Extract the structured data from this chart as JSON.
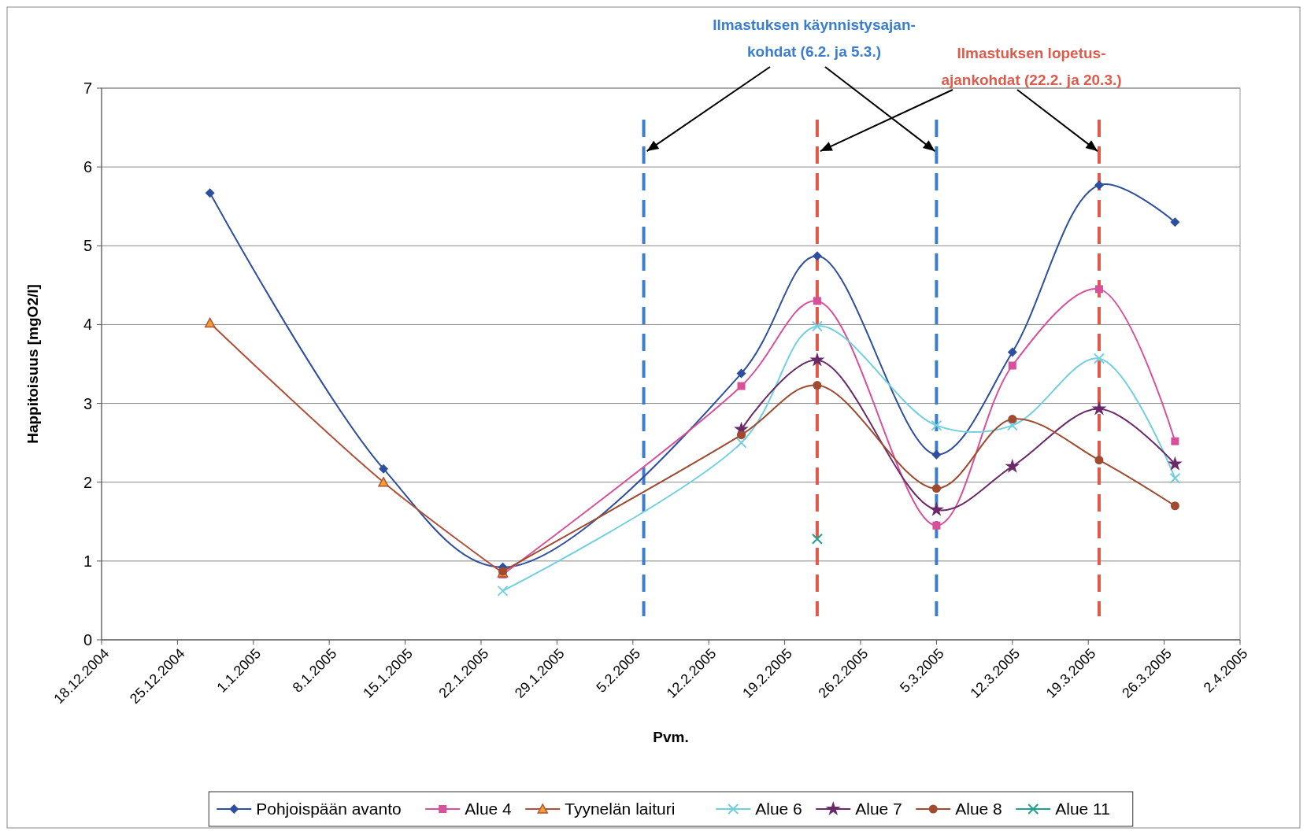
{
  "chart_data": {
    "type": "line",
    "xlabel": "Pvm.",
    "ylabel": "Happitoisuus [mgO2/l]",
    "xlim": [
      "2004-12-18",
      "2005-04-02"
    ],
    "xticks": [
      {
        "value": "2004-12-18",
        "label": "18.12.2004"
      },
      {
        "value": "2004-12-25",
        "label": "25.12.2004"
      },
      {
        "value": "2005-01-01",
        "label": "1.1.2005"
      },
      {
        "value": "2005-01-08",
        "label": "8.1.2005"
      },
      {
        "value": "2005-01-15",
        "label": "15.1.2005"
      },
      {
        "value": "2005-01-22",
        "label": "22.1.2005"
      },
      {
        "value": "2005-01-29",
        "label": "29.1.2005"
      },
      {
        "value": "2005-02-05",
        "label": "5.2.2005"
      },
      {
        "value": "2005-02-12",
        "label": "12.2.2005"
      },
      {
        "value": "2005-02-19",
        "label": "19.2.2005"
      },
      {
        "value": "2005-02-26",
        "label": "26.2.2005"
      },
      {
        "value": "2005-03-05",
        "label": "5.3.2005"
      },
      {
        "value": "2005-03-12",
        "label": "12.3.2005"
      },
      {
        "value": "2005-03-19",
        "label": "19.3.2005"
      },
      {
        "value": "2005-03-26",
        "label": "26.3.2005"
      },
      {
        "value": "2005-04-02",
        "label": "2.4.2005"
      }
    ],
    "ylim": [
      0,
      7
    ],
    "yticks": [
      0,
      1,
      2,
      3,
      4,
      5,
      6,
      7
    ],
    "grid": "y",
    "legend": "bottom",
    "series": [
      {
        "name": "Pohjoispään avanto",
        "color": "#2e4e9e",
        "marker": "diamond",
        "x": [
          "2004-12-28",
          "2005-01-13",
          "2005-01-24",
          "2005-02-15",
          "2005-02-22",
          "2005-03-05",
          "2005-03-12",
          "2005-03-20",
          "2005-03-27"
        ],
        "values": [
          5.67,
          2.17,
          0.92,
          3.38,
          4.87,
          2.35,
          3.65,
          5.77,
          5.3
        ]
      },
      {
        "name": "Alue 4",
        "color": "#d9509a",
        "marker": "square",
        "x": [
          "2005-01-24",
          "2005-02-15",
          "2005-02-22",
          "2005-03-05",
          "2005-03-12",
          "2005-03-20",
          "2005-03-27"
        ],
        "values": [
          0.83,
          3.22,
          4.3,
          1.45,
          3.48,
          4.45,
          2.52
        ]
      },
      {
        "name": "Tyynelän laituri",
        "color": "#b0503a",
        "marker": "triangle",
        "x": [
          "2004-12-28",
          "2005-01-13",
          "2005-01-24"
        ],
        "values": [
          4.02,
          2.0,
          0.85
        ]
      },
      {
        "name": "Alue 6",
        "color": "#70d0e0",
        "marker": "cross",
        "x": [
          "2005-01-24",
          "2005-02-15",
          "2005-02-22",
          "2005-03-05",
          "2005-03-12",
          "2005-03-20",
          "2005-03-27"
        ],
        "values": [
          0.62,
          2.5,
          3.98,
          2.72,
          2.72,
          3.57,
          2.05
        ]
      },
      {
        "name": "Alue 7",
        "color": "#6a2a6a",
        "marker": "star",
        "x": [
          "2005-02-15",
          "2005-02-22",
          "2005-03-05",
          "2005-03-12",
          "2005-03-20",
          "2005-03-27"
        ],
        "values": [
          2.67,
          3.55,
          1.65,
          2.2,
          2.93,
          2.23
        ]
      },
      {
        "name": "Alue 8",
        "color": "#a04a30",
        "marker": "circle",
        "x": [
          "2005-01-24",
          "2005-02-15",
          "2005-02-22",
          "2005-03-05",
          "2005-03-12",
          "2005-03-20",
          "2005-03-27"
        ],
        "values": [
          0.87,
          2.6,
          3.23,
          1.92,
          2.8,
          2.28,
          1.7
        ]
      },
      {
        "name": "Alue 11",
        "color": "#20a090",
        "marker": "cross",
        "x": [
          "2005-02-22"
        ],
        "values": [
          1.28
        ]
      }
    ],
    "ref_lines": [
      {
        "axis": "x",
        "value": "2005-02-06",
        "color": "#3a7ed0",
        "line_style": "dashed"
      },
      {
        "axis": "x",
        "value": "2005-03-05",
        "color": "#3a7ed0",
        "line_style": "dashed"
      },
      {
        "axis": "x",
        "value": "2005-02-22",
        "color": "#e05a4a",
        "line_style": "dashed"
      },
      {
        "axis": "x",
        "value": "2005-03-20",
        "color": "#e05a4a",
        "line_style": "dashed"
      }
    ],
    "annotations": [
      {
        "text": "Ilmastuksen käynnistysajan-\nkohdat (6.2. ja 5.3.)",
        "x": "2005-02-06",
        "y": 6.2
      },
      {
        "text": "Ilmastuksen lopetus-\najankohdat (22.2. ja 20.3.)",
        "x": "2005-02-22",
        "y": 6.2
      }
    ]
  }
}
